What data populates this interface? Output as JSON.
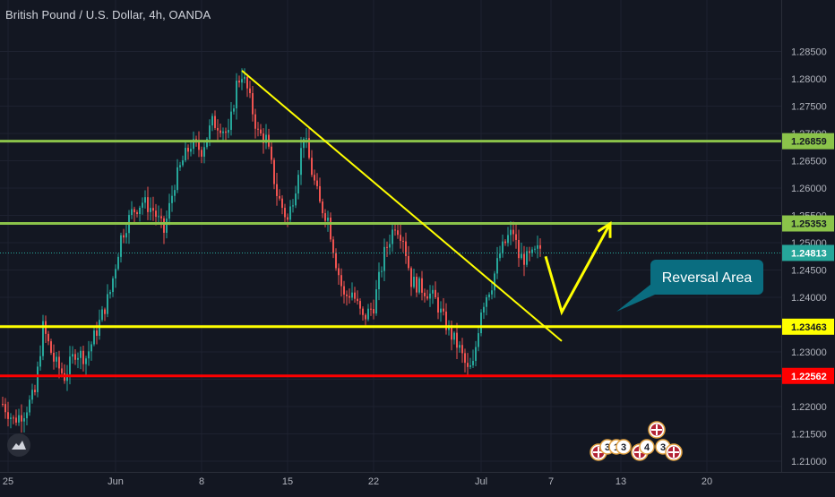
{
  "header": {
    "title": "British Pound / U.S. Dollar, 4h, OANDA"
  },
  "colors": {
    "background": "#131722",
    "up_candle": "#26a69a",
    "down_candle": "#ef5350",
    "green_level": "#8bc34a",
    "yellow_level": "#ffff00",
    "red_level": "#ff0000",
    "current_price": "#26a69a",
    "callout": "#0a6d80"
  },
  "annotation": {
    "callout_text": "Reversal Area"
  },
  "event_markers": {
    "group1": [
      "3",
      "1",
      "3"
    ],
    "group2": [
      "4",
      "3"
    ]
  },
  "chart_data": {
    "type": "candlestick",
    "title": "British Pound / U.S. Dollar, 4h, OANDA",
    "ylim": [
      1.2095,
      1.2895
    ],
    "y_ticks": [
      "1.28500",
      "1.28000",
      "1.27500",
      "1.27000",
      "1.26500",
      "1.26000",
      "1.25500",
      "1.25000",
      "1.24500",
      "1.24000",
      "1.23500",
      "1.23000",
      "1.22500",
      "1.22000",
      "1.21500",
      "1.21000"
    ],
    "x_ticks": [
      "25",
      "Jun",
      "8",
      "15",
      "22",
      "Jul",
      "7",
      "13",
      "20"
    ],
    "x_tick_index": [
      2,
      42,
      74,
      106,
      138,
      178,
      204,
      230,
      262
    ],
    "anchors": [
      [
        0,
        1.2205
      ],
      [
        4,
        1.2175
      ],
      [
        8,
        1.219
      ],
      [
        12,
        1.2225
      ],
      [
        15,
        1.2345
      ],
      [
        19,
        1.2285
      ],
      [
        23,
        1.2255
      ],
      [
        27,
        1.23
      ],
      [
        31,
        1.229
      ],
      [
        35,
        1.234
      ],
      [
        40,
        1.241
      ],
      [
        44,
        1.251
      ],
      [
        48,
        1.2555
      ],
      [
        52,
        1.2575
      ],
      [
        56,
        1.256
      ],
      [
        60,
        1.252
      ],
      [
        64,
        1.261
      ],
      [
        67,
        1.265
      ],
      [
        70,
        1.268
      ],
      [
        74,
        1.267
      ],
      [
        78,
        1.272
      ],
      [
        81,
        1.2715
      ],
      [
        84,
        1.2695
      ],
      [
        87,
        1.279
      ],
      [
        89,
        1.281
      ],
      [
        91,
        1.278
      ],
      [
        95,
        1.27
      ],
      [
        98,
        1.269
      ],
      [
        102,
        1.259
      ],
      [
        106,
        1.254
      ],
      [
        109,
        1.2605
      ],
      [
        112,
        1.27
      ],
      [
        115,
        1.263
      ],
      [
        118,
        1.257
      ],
      [
        121,
        1.2545
      ],
      [
        124,
        1.2465
      ],
      [
        127,
        1.24
      ],
      [
        130,
        1.241
      ],
      [
        134,
        1.236
      ],
      [
        138,
        1.2385
      ],
      [
        142,
        1.248
      ],
      [
        146,
        1.2535
      ],
      [
        149,
        1.251
      ],
      [
        152,
        1.243
      ],
      [
        155,
        1.242
      ],
      [
        158,
        1.241
      ],
      [
        161,
        1.2395
      ],
      [
        164,
        1.236
      ],
      [
        167,
        1.233
      ],
      [
        170,
        1.2305
      ],
      [
        173,
        1.2265
      ],
      [
        175,
        1.2275
      ],
      [
        178,
        1.238
      ],
      [
        180,
        1.2405
      ],
      [
        182,
        1.2425
      ],
      [
        185,
        1.248
      ],
      [
        188,
        1.251
      ],
      [
        190,
        1.252
      ],
      [
        192,
        1.2475
      ],
      [
        195,
        1.247
      ],
      [
        197,
        1.2475
      ],
      [
        200,
        1.249
      ]
    ],
    "levels": [
      {
        "price": 1.26859,
        "label": "1.26859",
        "color": "#8bc34a",
        "text_color": "#131722"
      },
      {
        "price": 1.25353,
        "label": "1.25353",
        "color": "#8bc34a",
        "text_color": "#131722"
      },
      {
        "price": 1.23463,
        "label": "1.23463",
        "color": "#ffff00",
        "text_color": "#131722"
      },
      {
        "price": 1.22562,
        "label": "1.22562",
        "color": "#ff0000",
        "text_color": "#ffffff"
      }
    ],
    "current_price": {
      "price": 1.24813,
      "label": "1.24813"
    },
    "trendline": {
      "from": [
        89,
        1.2815
      ],
      "to": [
        208,
        1.232
      ]
    },
    "projection": [
      [
        202,
        1.2475
      ],
      [
        208,
        1.2373
      ],
      [
        226,
        1.2535
      ]
    ],
    "grid": true,
    "legend": "none"
  }
}
